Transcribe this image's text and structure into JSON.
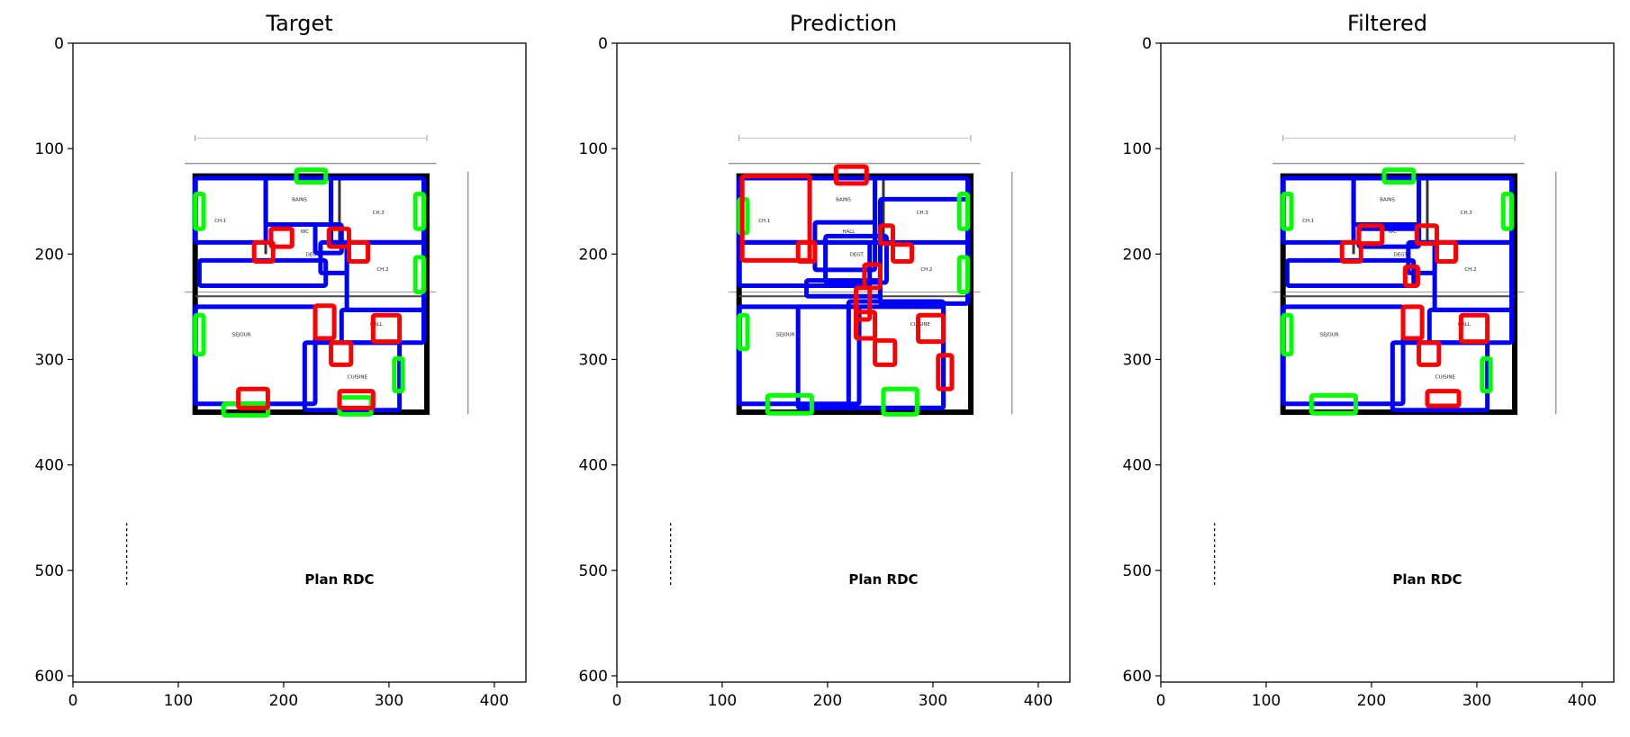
{
  "chart_data": [
    {
      "type": "image-overlay",
      "title": "Target",
      "x_ticks": [
        0,
        100,
        200,
        300,
        400
      ],
      "y_ticks": [
        0,
        100,
        200,
        300,
        400,
        500,
        600
      ],
      "xlim": [
        0,
        430
      ],
      "ylim": [
        606,
        0
      ],
      "plan_label": "Plan RDC",
      "room_labels": [
        "CH.1",
        "BAINS",
        "CH.3",
        "CH.2",
        "SEJOUR",
        "DEGT.",
        "WC",
        "HALL",
        "CUISINE"
      ],
      "room_boxes": [
        [
          116,
          128,
          183,
          189
        ],
        [
          183,
          128,
          245,
          172
        ],
        [
          245,
          128,
          333,
          189
        ],
        [
          260,
          189,
          333,
          253
        ],
        [
          116,
          250,
          230,
          342
        ],
        [
          230,
          172,
          255,
          199
        ],
        [
          235,
          189,
          260,
          218
        ],
        [
          255,
          253,
          333,
          284
        ],
        [
          220,
          284,
          310,
          348
        ],
        [
          120,
          206,
          240,
          230
        ]
      ],
      "colors": {
        "walls": "#0000ff",
        "doors": "#ff0000",
        "windows": "#00ff00"
      },
      "windows": [
        [
          116,
          143,
          124,
          176
        ],
        [
          212,
          120,
          240,
          132
        ],
        [
          325,
          143,
          333,
          176
        ],
        [
          325,
          203,
          333,
          236
        ],
        [
          116,
          258,
          124,
          295
        ],
        [
          305,
          299,
          313,
          330
        ],
        [
          143,
          342,
          185,
          353
        ],
        [
          253,
          336,
          283,
          352
        ]
      ],
      "doors": [
        [
          188,
          176,
          208,
          193
        ],
        [
          172,
          189,
          190,
          207
        ],
        [
          243,
          176,
          262,
          193
        ],
        [
          262,
          189,
          280,
          207
        ],
        [
          230,
          249,
          248,
          280
        ],
        [
          245,
          284,
          264,
          305
        ],
        [
          285,
          258,
          310,
          283
        ],
        [
          157,
          328,
          185,
          346
        ],
        [
          253,
          330,
          285,
          346
        ]
      ]
    },
    {
      "type": "image-overlay",
      "title": "Prediction",
      "x_ticks": [
        0,
        100,
        200,
        300,
        400
      ],
      "y_ticks": [
        0,
        100,
        200,
        300,
        400,
        500,
        600
      ],
      "xlim": [
        0,
        430
      ],
      "ylim": [
        606,
        0
      ],
      "plan_label": "Plan RDC",
      "room_labels": [
        "CH.1",
        "BAINS",
        "CH.3",
        "CH.2",
        "SEJOUR",
        "DEGT.",
        "HALL",
        "CUISINE"
      ],
      "room_boxes": [
        [
          116,
          128,
          245,
          189
        ],
        [
          245,
          128,
          333,
          189
        ],
        [
          250,
          148,
          333,
          247
        ],
        [
          116,
          189,
          240,
          230
        ],
        [
          116,
          250,
          230,
          342
        ],
        [
          172,
          250,
          310,
          346
        ],
        [
          220,
          245,
          310,
          346
        ],
        [
          188,
          170,
          245,
          215
        ],
        [
          198,
          183,
          256,
          227
        ],
        [
          180,
          225,
          250,
          240
        ]
      ],
      "colors": {
        "walls": "#0000ff",
        "doors": "#ff0000",
        "windows": "#00ff00"
      },
      "windows": [
        [
          116,
          148,
          124,
          180
        ],
        [
          325,
          143,
          333,
          176
        ],
        [
          325,
          203,
          333,
          236
        ],
        [
          116,
          258,
          124,
          290
        ],
        [
          143,
          334,
          185,
          351
        ],
        [
          253,
          328,
          285,
          352
        ]
      ],
      "doors": [
        [
          119,
          126,
          183,
          206
        ],
        [
          208,
          117,
          237,
          133
        ],
        [
          172,
          189,
          188,
          207
        ],
        [
          250,
          173,
          262,
          190
        ],
        [
          262,
          191,
          280,
          207
        ],
        [
          235,
          210,
          250,
          232
        ],
        [
          227,
          232,
          240,
          262
        ],
        [
          227,
          255,
          245,
          280
        ],
        [
          245,
          282,
          264,
          305
        ],
        [
          286,
          258,
          310,
          283
        ],
        [
          305,
          296,
          318,
          328
        ]
      ]
    },
    {
      "type": "image-overlay",
      "title": "Filtered",
      "x_ticks": [
        0,
        100,
        200,
        300,
        400
      ],
      "y_ticks": [
        0,
        100,
        200,
        300,
        400,
        500,
        600
      ],
      "xlim": [
        0,
        430
      ],
      "ylim": [
        606,
        0
      ],
      "plan_label": "Plan RDC",
      "room_labels": [
        "CH.1",
        "BAINS",
        "CH.3",
        "CH.2",
        "SEJOUR",
        "DEGT.",
        "WC",
        "HALL",
        "CUISINE"
      ],
      "room_boxes": [
        [
          116,
          128,
          183,
          189
        ],
        [
          183,
          128,
          245,
          172
        ],
        [
          245,
          128,
          333,
          189
        ],
        [
          260,
          189,
          333,
          253
        ],
        [
          116,
          250,
          230,
          342
        ],
        [
          188,
          176,
          245,
          193
        ],
        [
          235,
          189,
          260,
          218
        ],
        [
          255,
          253,
          333,
          284
        ],
        [
          220,
          284,
          310,
          348
        ],
        [
          120,
          206,
          240,
          230
        ]
      ],
      "colors": {
        "walls": "#0000ff",
        "doors": "#ff0000",
        "windows": "#00ff00"
      },
      "windows": [
        [
          116,
          143,
          124,
          176
        ],
        [
          212,
          120,
          240,
          132
        ],
        [
          325,
          143,
          333,
          176
        ],
        [
          116,
          258,
          124,
          295
        ],
        [
          305,
          299,
          313,
          330
        ],
        [
          143,
          334,
          185,
          351
        ]
      ],
      "doors": [
        [
          188,
          173,
          210,
          190
        ],
        [
          172,
          189,
          190,
          207
        ],
        [
          243,
          173,
          262,
          190
        ],
        [
          262,
          189,
          280,
          207
        ],
        [
          232,
          212,
          244,
          230
        ],
        [
          230,
          250,
          248,
          280
        ],
        [
          245,
          284,
          264,
          305
        ],
        [
          285,
          258,
          310,
          283
        ],
        [
          253,
          330,
          283,
          344
        ]
      ]
    }
  ]
}
